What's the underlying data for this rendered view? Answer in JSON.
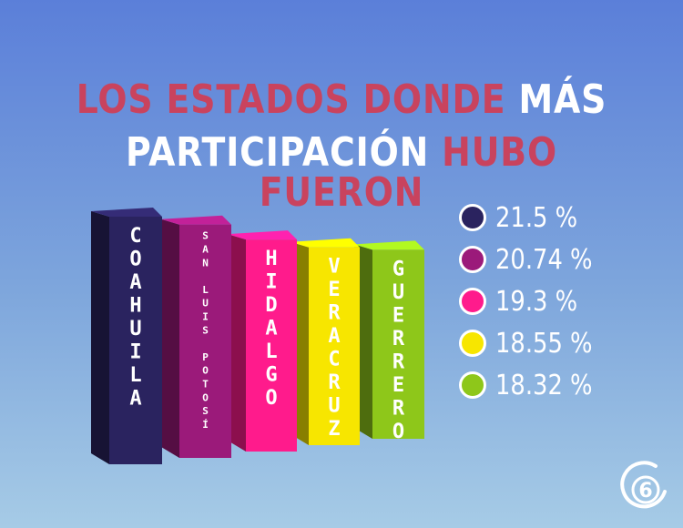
{
  "header": {
    "line1": [
      {
        "text": "LOS ESTADOS DONDE ",
        "color": "#c9435e"
      },
      {
        "text": "MÁS",
        "color": "#ffffff"
      }
    ],
    "line2": [
      {
        "text": "PARTICIPACIÓN ",
        "color": "#ffffff"
      },
      {
        "text": "HUBO FUERON",
        "color": "#c9435e"
      }
    ]
  },
  "chart_data": {
    "type": "bar",
    "title": "LOS ESTADOS DONDE MÁS PARTICIPACIÓN HUBO FUERON",
    "categories": [
      "COAHUILA",
      "SAN LUIS POTOSÍ",
      "HIDALGO",
      "VERACRUZ",
      "GUERRERO"
    ],
    "values": [
      21.5,
      20.74,
      19.3,
      18.55,
      18.32
    ],
    "value_labels": [
      "21.5 %",
      "20.74 %",
      "19.3 %",
      "18.55 %",
      "18.32 %"
    ],
    "colors": [
      "#2a235f",
      "#9b1a7a",
      "#ff1b8c",
      "#f7e600",
      "#8ec71a"
    ],
    "legend_position": "right",
    "grid": false
  },
  "logo": {
    "text": "6",
    "icon": "channel-6-logo"
  }
}
